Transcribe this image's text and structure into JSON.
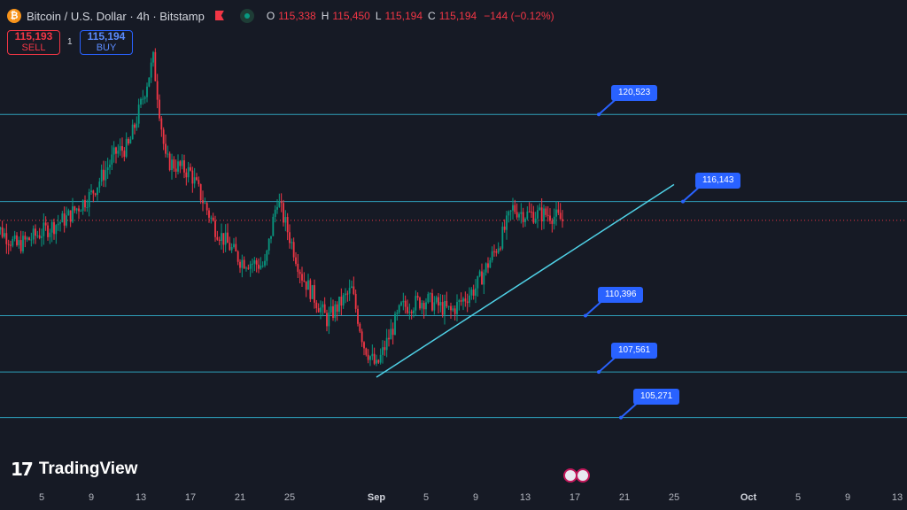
{
  "header": {
    "symbol_title": "Bitcoin / U.S. Dollar · 4h · Bitstamp",
    "btc_icon": "₿",
    "ohlc": {
      "o_label": "O",
      "o": "115,338",
      "h_label": "H",
      "h": "115,450",
      "l_label": "L",
      "l": "115,194",
      "c_label": "C",
      "c": "115,194",
      "change": "−144 (−0.12%)"
    }
  },
  "trade": {
    "sell_price": "115,193",
    "sell_label": "SELL",
    "buy_price": "115,194",
    "buy_label": "BUY",
    "spread": "1"
  },
  "logo": {
    "mark": "17",
    "text": "TradingView"
  },
  "colors": {
    "background": "#161a25",
    "up": "#089981",
    "down": "#f23645",
    "level_line": "#2e9eb8",
    "trendline": "#4fd1e6",
    "tag": "#2962ff"
  },
  "chart_data": {
    "type": "candlestick",
    "x_ticks": [
      {
        "date": "Aug 5",
        "label": "5"
      },
      {
        "date": "Aug 9",
        "label": "9"
      },
      {
        "date": "Aug 13",
        "label": "13"
      },
      {
        "date": "Aug 17",
        "label": "17"
      },
      {
        "date": "Aug 21",
        "label": "21"
      },
      {
        "date": "Aug 25",
        "label": "25"
      },
      {
        "date": "Sep 1",
        "label": "Sep"
      },
      {
        "date": "Sep 5",
        "label": "5"
      },
      {
        "date": "Sep 9",
        "label": "9"
      },
      {
        "date": "Sep 13",
        "label": "13"
      },
      {
        "date": "Sep 17",
        "label": "17"
      },
      {
        "date": "Sep 21",
        "label": "21"
      },
      {
        "date": "Sep 25",
        "label": "25"
      },
      {
        "date": "Oct 1",
        "label": "Oct"
      },
      {
        "date": "Oct 5",
        "label": "5"
      },
      {
        "date": "Oct 9",
        "label": "9"
      },
      {
        "date": "Oct 13",
        "label": "13"
      }
    ],
    "ylim": [
      102000,
      124500
    ],
    "last_price": 115194,
    "horizontal_levels": [
      120523,
      116143,
      110396,
      107561,
      105271
    ],
    "level_labels": [
      "120,523",
      "116,143",
      "110,396",
      "107,561",
      "105,271"
    ],
    "trendline": {
      "start": {
        "date": "Sep 1",
        "price": 107300
      },
      "end": {
        "date": "Sep 25",
        "price": 117000
      }
    },
    "close_path": [
      {
        "date": "Aug 1",
        "price": 115100
      },
      {
        "date": "Aug 3",
        "price": 113900
      },
      {
        "date": "Aug 5",
        "price": 114600
      },
      {
        "date": "Aug 7",
        "price": 115300
      },
      {
        "date": "Aug 9",
        "price": 116500
      },
      {
        "date": "Aug 11",
        "price": 118600
      },
      {
        "date": "Aug 12",
        "price": 118900
      },
      {
        "date": "Aug 13",
        "price": 121000
      },
      {
        "date": "Aug 14",
        "price": 123300
      },
      {
        "date": "Aug 15",
        "price": 118200
      },
      {
        "date": "Aug 17",
        "price": 117600
      },
      {
        "date": "Aug 19",
        "price": 114800
      },
      {
        "date": "Aug 21",
        "price": 113200
      },
      {
        "date": "Aug 23",
        "price": 112900
      },
      {
        "date": "Aug 24",
        "price": 116300
      },
      {
        "date": "Aug 26",
        "price": 112400
      },
      {
        "date": "Aug 28",
        "price": 110200
      },
      {
        "date": "Aug 30",
        "price": 111700
      },
      {
        "date": "Aug 31",
        "price": 108900
      },
      {
        "date": "Sep 1",
        "price": 107800
      },
      {
        "date": "Sep 3",
        "price": 110800
      },
      {
        "date": "Sep 5",
        "price": 111200
      },
      {
        "date": "Sep 7",
        "price": 110600
      },
      {
        "date": "Sep 9",
        "price": 111800
      },
      {
        "date": "Sep 11",
        "price": 114200
      },
      {
        "date": "Sep 12",
        "price": 115800
      },
      {
        "date": "Sep 13",
        "price": 115500
      },
      {
        "date": "Sep 15",
        "price": 115500
      },
      {
        "date": "Sep 16",
        "price": 115194
      }
    ]
  }
}
